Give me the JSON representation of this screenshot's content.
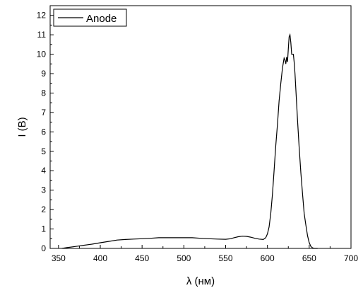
{
  "chart_data": {
    "type": "line",
    "xlabel": "λ (нм)",
    "ylabel": "I (В)",
    "xlim": [
      340,
      700
    ],
    "ylim": [
      0,
      12.5
    ],
    "xticks": [
      350,
      400,
      450,
      500,
      550,
      600,
      650,
      700
    ],
    "yticks": [
      0,
      1,
      2,
      3,
      4,
      5,
      6,
      7,
      8,
      9,
      10,
      11,
      12
    ],
    "grid": false,
    "legend_position": "top-left",
    "series": [
      {
        "name": "Anode",
        "color": "#000000",
        "x": [
          354,
          360,
          370,
          380,
          390,
          400,
          410,
          420,
          430,
          440,
          450,
          460,
          470,
          480,
          490,
          500,
          510,
          520,
          530,
          540,
          550,
          556,
          560,
          565,
          570,
          575,
          580,
          585,
          590,
          595,
          598,
          600,
          602,
          604,
          606,
          608,
          610,
          612,
          614,
          616,
          618,
          620,
          621,
          622,
          623,
          624,
          625,
          626,
          627,
          628,
          629,
          630,
          631,
          632,
          633,
          634,
          636,
          638,
          640,
          642,
          644,
          646,
          648,
          650,
          652,
          654,
          656,
          658,
          660
        ],
        "y": [
          0.0,
          0.04,
          0.1,
          0.16,
          0.22,
          0.29,
          0.36,
          0.43,
          0.46,
          0.48,
          0.5,
          0.52,
          0.55,
          0.55,
          0.55,
          0.55,
          0.55,
          0.52,
          0.5,
          0.48,
          0.47,
          0.5,
          0.55,
          0.6,
          0.63,
          0.62,
          0.58,
          0.52,
          0.48,
          0.46,
          0.55,
          0.75,
          1.1,
          1.8,
          2.8,
          4.0,
          5.3,
          6.4,
          7.6,
          8.5,
          9.3,
          9.8,
          9.7,
          9.5,
          9.85,
          9.6,
          10.3,
          10.9,
          11.0,
          10.6,
          10.0,
          10.0,
          10.0,
          9.6,
          9.0,
          8.2,
          6.6,
          5.2,
          3.9,
          2.8,
          1.8,
          1.2,
          0.65,
          0.3,
          0.1,
          0.03,
          0.0,
          0.0,
          0.0
        ]
      }
    ]
  }
}
